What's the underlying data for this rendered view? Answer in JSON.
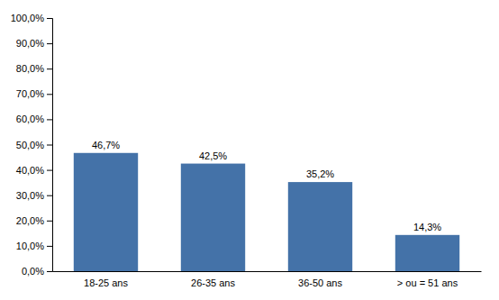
{
  "chart_data": {
    "type": "bar",
    "categories": [
      "18-25 ans",
      "26-35 ans",
      "36-50 ans",
      "> ou = 51 ans"
    ],
    "values": [
      46.7,
      42.5,
      35.2,
      14.3
    ],
    "value_labels": [
      "46,7%",
      "42,5%",
      "35,2%",
      "14,3%"
    ],
    "data_labels": true,
    "color": "#4472a8",
    "ylim": [
      0,
      100
    ],
    "yticks": [
      {
        "value": 0,
        "label": "0,0%"
      },
      {
        "value": 10,
        "label": "10,0%"
      },
      {
        "value": 20,
        "label": "20,0%"
      },
      {
        "value": 30,
        "label": "30,0%"
      },
      {
        "value": 40,
        "label": "40,0%"
      },
      {
        "value": 50,
        "label": "50,0%"
      },
      {
        "value": 60,
        "label": "60,0%"
      },
      {
        "value": 70,
        "label": "70,0%"
      },
      {
        "value": 80,
        "label": "80,0%"
      },
      {
        "value": 90,
        "label": "90,0%"
      },
      {
        "value": 100,
        "label": "100,0%"
      }
    ],
    "grid": false
  }
}
